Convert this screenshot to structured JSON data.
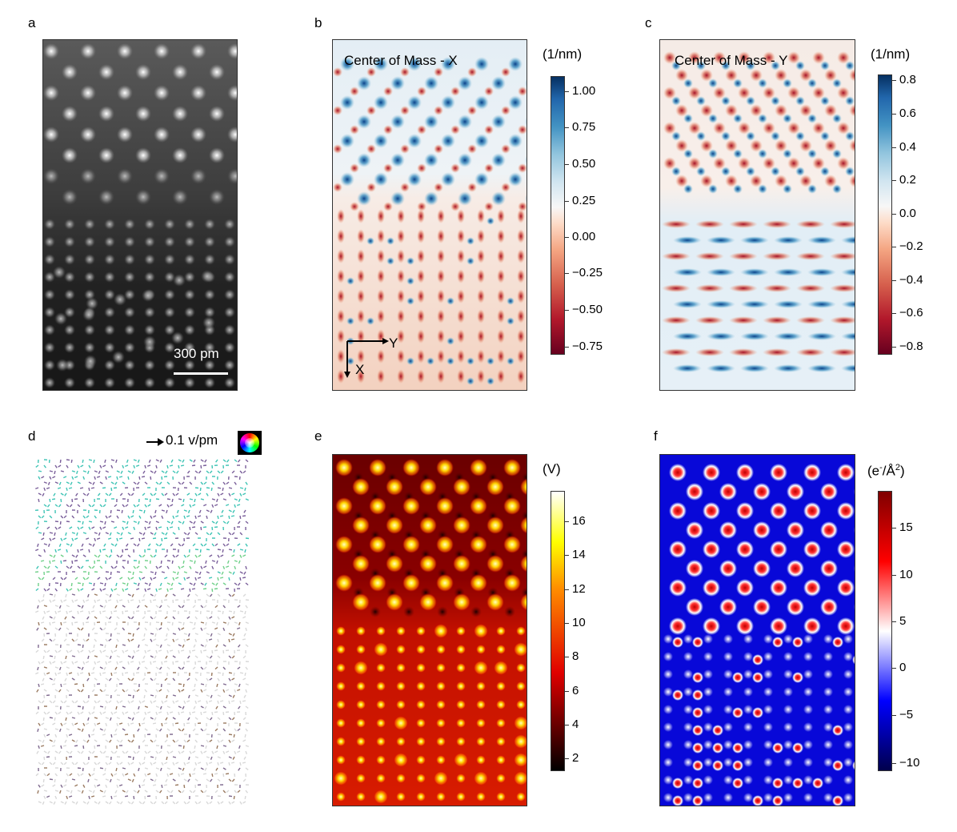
{
  "panels": {
    "a": {
      "letter": "a",
      "scalebar_label": "300 pm"
    },
    "b": {
      "letter": "b",
      "title": "Center of Mass - X",
      "unit": "(1/nm)",
      "ticks": [
        "1.00",
        "0.75",
        "0.50",
        "0.25",
        "0.00",
        "−0.25",
        "−0.50",
        "−0.75"
      ],
      "axis_y": "Y",
      "axis_x": "X"
    },
    "c": {
      "letter": "c",
      "title": "Center of Mass - Y",
      "unit": "(1/nm)",
      "ticks": [
        "0.8",
        "0.6",
        "0.4",
        "0.2",
        "0.0",
        "−0.2",
        "−0.4",
        "−0.6",
        "−0.8"
      ]
    },
    "d": {
      "letter": "d",
      "legend": "0.1 v/pm"
    },
    "e": {
      "letter": "e",
      "unit": "(V)",
      "ticks": [
        "16",
        "14",
        "12",
        "10",
        "8",
        "6",
        "4",
        "2"
      ]
    },
    "f": {
      "letter": "f",
      "unit_base": "(e",
      "unit_sup": "-",
      "unit_mid": "/Å",
      "unit_sup2": "2",
      "unit_end": ")",
      "ticks": [
        "15",
        "10",
        "5",
        "0",
        "−5",
        "−10"
      ]
    }
  },
  "colors": {
    "rdbu_low": "#67001f",
    "rdbu_mid": "#f7f7f7",
    "rdbu_high": "#053061",
    "seismic_low": "#00004c",
    "seismic_high": "#7f0000"
  }
}
